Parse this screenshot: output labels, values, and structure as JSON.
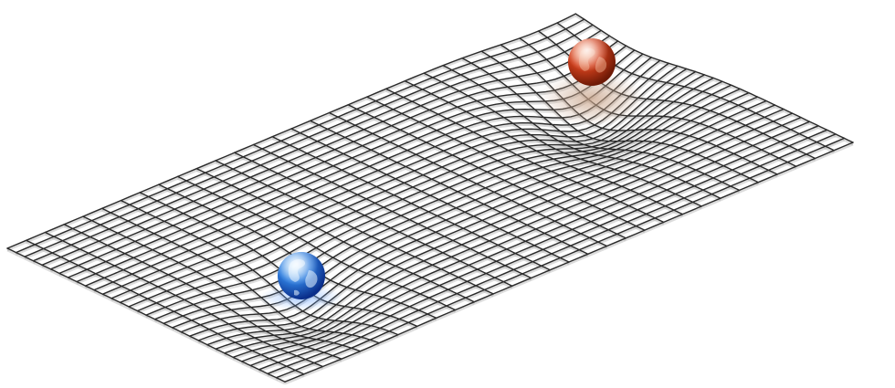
{
  "diagram": {
    "grid": {
      "rows": 30,
      "cols": 32,
      "line_color": "#2a2a2a",
      "shadow_color": "#9a9a9a"
    },
    "wells": [
      {
        "name": "blue-earth",
        "highlight_color": "#bfe6ff",
        "base_color": "#2f7fe0",
        "shade_color": "#0a2e8a",
        "land_color": "#e8f4ff",
        "glow_color": "#6fa8ff"
      },
      {
        "name": "red-planet",
        "highlight_color": "#ffb08a",
        "base_color": "#d2401c",
        "shade_color": "#6e1a06",
        "land_color": "#f0b090",
        "glow_color": "#c9a48a"
      }
    ]
  }
}
